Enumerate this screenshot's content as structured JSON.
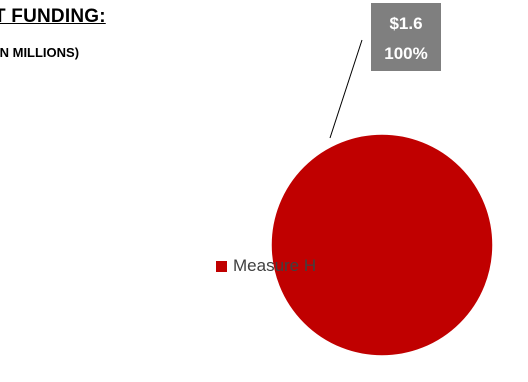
{
  "chart_data": {
    "type": "pie",
    "title": "T FUNDING:",
    "subtitle": "IN MILLIONS)",
    "categories": [
      "Measure H"
    ],
    "values": [
      1.6
    ],
    "data_labels": [
      {
        "value": "$1.6",
        "percent": "100%"
      }
    ],
    "legend": {
      "placement": "left",
      "entries": [
        "Measure H"
      ]
    },
    "colors": {
      "slice": "#c00000",
      "label_box": "#7f7f7f",
      "leader_line": "#000000"
    }
  }
}
